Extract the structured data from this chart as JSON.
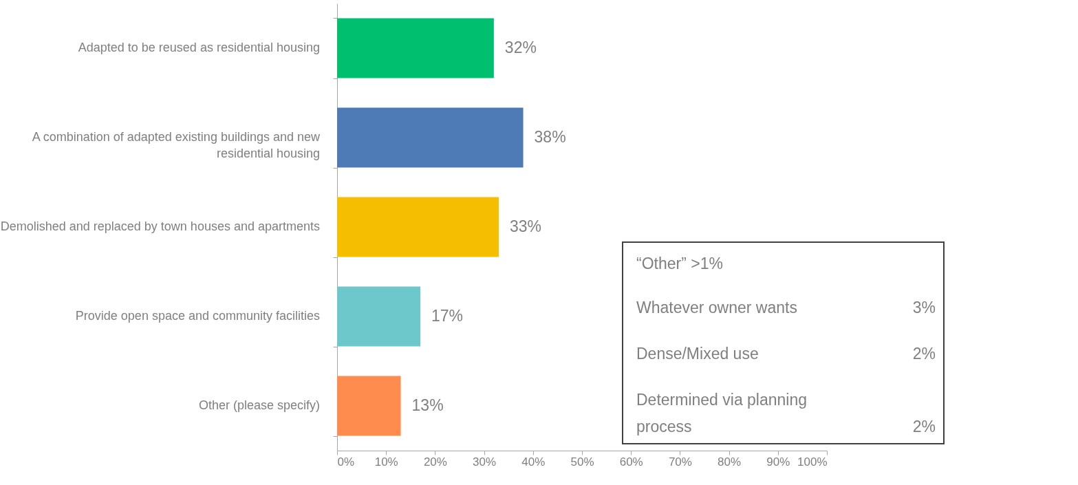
{
  "chart_data": {
    "type": "bar",
    "orientation": "horizontal",
    "categories": [
      "Adapted to be reused as residential housing",
      "A combination of adapted existing buildings and new residential housing",
      "Demolished and replaced by town houses and apartments",
      "Provide open space and community facilities",
      "Other (please specify)"
    ],
    "values": [
      32,
      38,
      33,
      17,
      13
    ],
    "colors": [
      "#00bf6f",
      "#4e7ab5",
      "#f5be00",
      "#6cc8cb",
      "#ff8c4f"
    ],
    "value_labels": [
      "32%",
      "38%",
      "33%",
      "17%",
      "13%"
    ],
    "xlim": [
      0,
      100
    ],
    "xticks": [
      {
        "value": 0,
        "label": "0%"
      },
      {
        "value": 10,
        "label": "10%"
      },
      {
        "value": 20,
        "label": "20%"
      },
      {
        "value": 30,
        "label": "30%"
      },
      {
        "value": 40,
        "label": "40%"
      },
      {
        "value": 50,
        "label": "50%"
      },
      {
        "value": 60,
        "label": "60%"
      },
      {
        "value": 70,
        "label": "70%"
      },
      {
        "value": 80,
        "label": "80%"
      },
      {
        "value": 90,
        "label": "90%"
      },
      {
        "value": 100,
        "label": "100%"
      }
    ],
    "annotations": [
      "“Other” >1%",
      "Whatever owner wants 3%",
      "Dense/Mixed use 2%",
      "Determined via planning process 2%"
    ],
    "grid": false
  }
}
